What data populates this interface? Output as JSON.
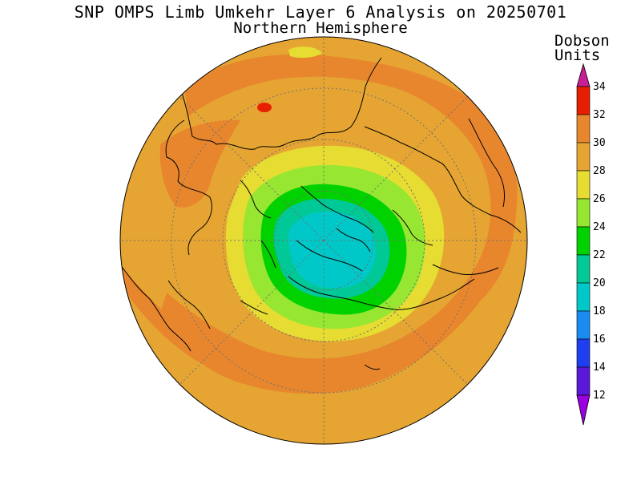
{
  "title": {
    "line1": "SNP OMPS Limb Umkehr Layer 6 Analysis on 20250701",
    "line2": "Northern Hemisphere"
  },
  "colorbar": {
    "units_line1": "Dobson",
    "units_line2": "Units",
    "levels": [
      "12",
      "14",
      "16",
      "18",
      "20",
      "22",
      "24",
      "26",
      "28",
      "30",
      "32",
      "34"
    ],
    "colors": [
      "#9a00e0",
      "#5a18d8",
      "#1e3ef0",
      "#1a8cf0",
      "#00c8c8",
      "#00c896",
      "#00d200",
      "#96e632",
      "#e6dc32",
      "#e6a532",
      "#e8862e",
      "#e81e00",
      "#c81e96"
    ]
  },
  "map": {
    "projection": "north polar stereographic",
    "background_color": "#e6a532"
  }
}
